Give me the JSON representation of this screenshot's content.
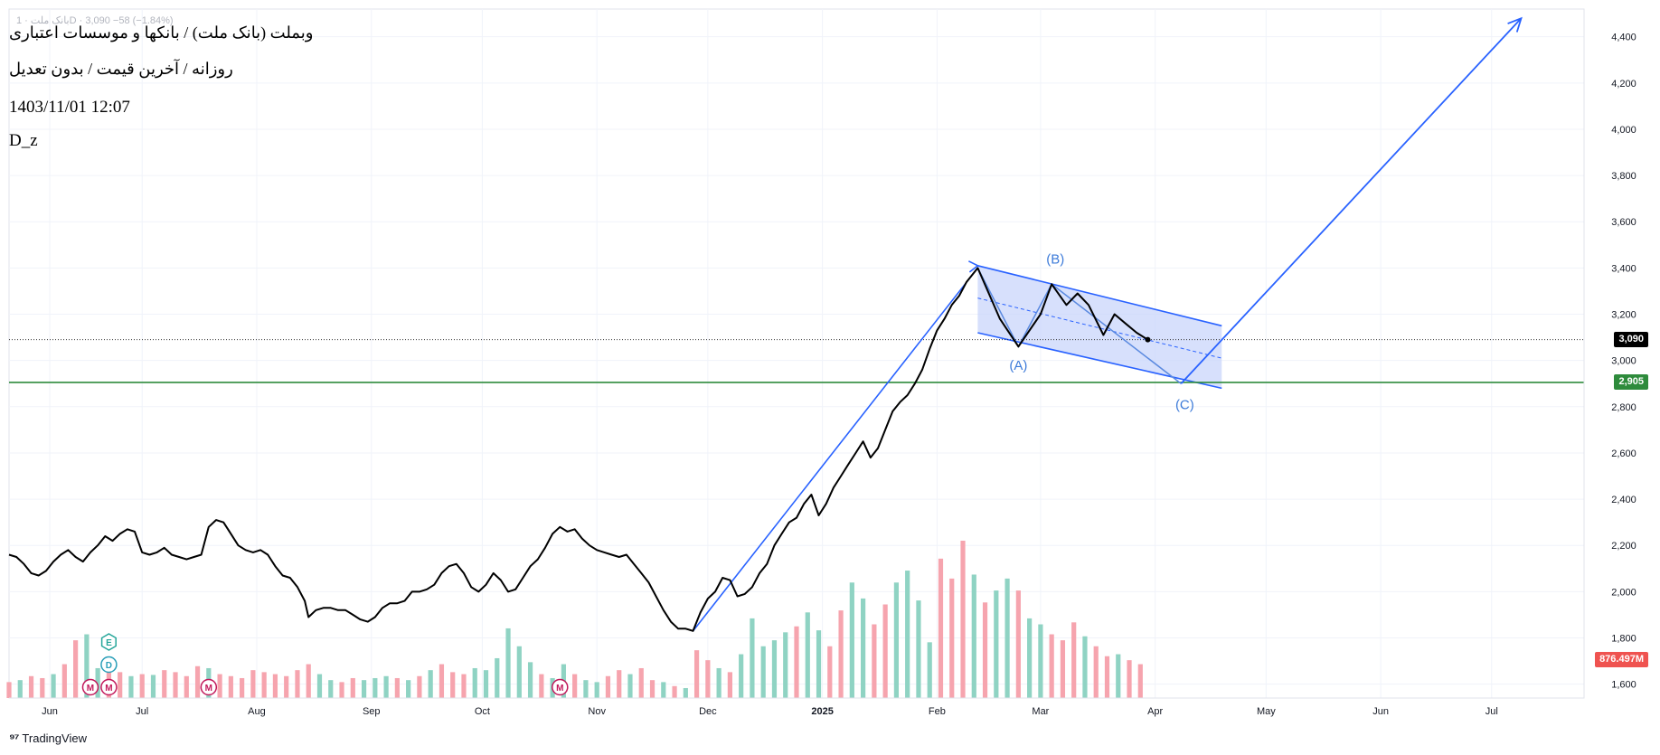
{
  "header": {
    "ticker_strip": "بانک ملت · 1D · 3,090 −58 (−1.84%)",
    "symbol_line": "وبملت (بانک ملت) / بانکها و موسسات اعتباری",
    "params_line": "روزانه / آخرین قیمت / بدون تعدیل",
    "date_line": "1403/11/01 12:07",
    "author_line": "D_z"
  },
  "footer": {
    "brand": "TradingView"
  },
  "price_labels": {
    "last": "3,090",
    "support": "2,905",
    "volume": "876.497M"
  },
  "colors": {
    "price_line": "#000000",
    "drawing_blue": "#2962ff",
    "wave_label_blue": "#3d7bd9",
    "channel_fill": "#c9d6fb",
    "support_green": "#2e8b3c",
    "volume_up": "#8fd3c3",
    "volume_down": "#f6a4ae",
    "grid": "#f0f3fa",
    "axis_text": "#131722",
    "marker_magenta": "#c2185b",
    "marker_teal": "#26a69a"
  },
  "chart_data": {
    "type": "line",
    "y_axis": {
      "ticks": [
        "1,600",
        "1,800",
        "2,000",
        "2,200",
        "2,400",
        "2,600",
        "2,800",
        "3,000",
        "3,200",
        "3,400",
        "3,600",
        "3,800",
        "4,000",
        "4,200",
        "4,400"
      ],
      "range": [
        1540,
        4520
      ]
    },
    "x_axis": {
      "range": [
        "2024-05-26",
        "2025-07-26"
      ],
      "ticks": [
        {
          "date": "2024-06-06",
          "label": "Jun"
        },
        {
          "date": "2024-07-01",
          "label": "Jul"
        },
        {
          "date": "2024-08-01",
          "label": "Aug"
        },
        {
          "date": "2024-09-01",
          "label": "Sep"
        },
        {
          "date": "2024-10-01",
          "label": "Oct"
        },
        {
          "date": "2024-11-01",
          "label": "Nov"
        },
        {
          "date": "2024-12-01",
          "label": "Dec"
        },
        {
          "date": "2025-01-01",
          "label": "2025",
          "bold": true
        },
        {
          "date": "2025-02-01",
          "label": "Feb"
        },
        {
          "date": "2025-03-01",
          "label": "Mar"
        },
        {
          "date": "2025-04-01",
          "label": "Apr"
        },
        {
          "date": "2025-05-01",
          "label": "May"
        },
        {
          "date": "2025-06-01",
          "label": "Jun"
        },
        {
          "date": "2025-07-01",
          "label": "Jul"
        }
      ]
    },
    "price_series": [
      [
        "2024-05-26",
        2160
      ],
      [
        "2024-05-28",
        2150
      ],
      [
        "2024-05-30",
        2120
      ],
      [
        "2024-06-01",
        2080
      ],
      [
        "2024-06-03",
        2070
      ],
      [
        "2024-06-05",
        2090
      ],
      [
        "2024-06-07",
        2130
      ],
      [
        "2024-06-09",
        2160
      ],
      [
        "2024-06-11",
        2180
      ],
      [
        "2024-06-13",
        2150
      ],
      [
        "2024-06-15",
        2130
      ],
      [
        "2024-06-17",
        2170
      ],
      [
        "2024-06-19",
        2200
      ],
      [
        "2024-06-21",
        2240
      ],
      [
        "2024-06-23",
        2220
      ],
      [
        "2024-06-25",
        2250
      ],
      [
        "2024-06-27",
        2270
      ],
      [
        "2024-06-29",
        2260
      ],
      [
        "2024-07-01",
        2170
      ],
      [
        "2024-07-03",
        2160
      ],
      [
        "2024-07-05",
        2170
      ],
      [
        "2024-07-07",
        2190
      ],
      [
        "2024-07-09",
        2160
      ],
      [
        "2024-07-11",
        2150
      ],
      [
        "2024-07-13",
        2140
      ],
      [
        "2024-07-15",
        2150
      ],
      [
        "2024-07-17",
        2160
      ],
      [
        "2024-07-19",
        2280
      ],
      [
        "2024-07-21",
        2310
      ],
      [
        "2024-07-23",
        2300
      ],
      [
        "2024-07-25",
        2250
      ],
      [
        "2024-07-27",
        2200
      ],
      [
        "2024-07-29",
        2180
      ],
      [
        "2024-07-31",
        2170
      ],
      [
        "2024-08-02",
        2180
      ],
      [
        "2024-08-04",
        2160
      ],
      [
        "2024-08-06",
        2110
      ],
      [
        "2024-08-08",
        2070
      ],
      [
        "2024-08-10",
        2060
      ],
      [
        "2024-08-12",
        2020
      ],
      [
        "2024-08-14",
        1960
      ],
      [
        "2024-08-15",
        1890
      ],
      [
        "2024-08-17",
        1920
      ],
      [
        "2024-08-19",
        1930
      ],
      [
        "2024-08-21",
        1930
      ],
      [
        "2024-08-23",
        1920
      ],
      [
        "2024-08-25",
        1920
      ],
      [
        "2024-08-27",
        1900
      ],
      [
        "2024-08-29",
        1880
      ],
      [
        "2024-08-31",
        1870
      ],
      [
        "2024-09-02",
        1890
      ],
      [
        "2024-09-04",
        1930
      ],
      [
        "2024-09-06",
        1950
      ],
      [
        "2024-09-08",
        1950
      ],
      [
        "2024-09-10",
        1960
      ],
      [
        "2024-09-12",
        2000
      ],
      [
        "2024-09-14",
        2000
      ],
      [
        "2024-09-16",
        2010
      ],
      [
        "2024-09-18",
        2030
      ],
      [
        "2024-09-20",
        2080
      ],
      [
        "2024-09-22",
        2110
      ],
      [
        "2024-09-24",
        2120
      ],
      [
        "2024-09-26",
        2080
      ],
      [
        "2024-09-28",
        2020
      ],
      [
        "2024-09-30",
        2000
      ],
      [
        "2024-10-02",
        2030
      ],
      [
        "2024-10-04",
        2080
      ],
      [
        "2024-10-06",
        2050
      ],
      [
        "2024-10-08",
        2000
      ],
      [
        "2024-10-10",
        2010
      ],
      [
        "2024-10-12",
        2060
      ],
      [
        "2024-10-14",
        2110
      ],
      [
        "2024-10-16",
        2140
      ],
      [
        "2024-10-18",
        2190
      ],
      [
        "2024-10-20",
        2250
      ],
      [
        "2024-10-22",
        2280
      ],
      [
        "2024-10-24",
        2260
      ],
      [
        "2024-10-26",
        2270
      ],
      [
        "2024-10-28",
        2230
      ],
      [
        "2024-10-30",
        2200
      ],
      [
        "2024-11-01",
        2180
      ],
      [
        "2024-11-03",
        2170
      ],
      [
        "2024-11-05",
        2160
      ],
      [
        "2024-11-07",
        2150
      ],
      [
        "2024-11-09",
        2160
      ],
      [
        "2024-11-11",
        2120
      ],
      [
        "2024-11-13",
        2080
      ],
      [
        "2024-11-15",
        2040
      ],
      [
        "2024-11-17",
        1980
      ],
      [
        "2024-11-19",
        1920
      ],
      [
        "2024-11-21",
        1870
      ],
      [
        "2024-11-23",
        1840
      ],
      [
        "2024-11-25",
        1840
      ],
      [
        "2024-11-27",
        1830
      ],
      [
        "2024-11-29",
        1910
      ],
      [
        "2024-12-01",
        1970
      ],
      [
        "2024-12-03",
        2000
      ],
      [
        "2024-12-05",
        2060
      ],
      [
        "2024-12-07",
        2050
      ],
      [
        "2024-12-09",
        1980
      ],
      [
        "2024-12-11",
        1990
      ],
      [
        "2024-12-13",
        2020
      ],
      [
        "2024-12-15",
        2080
      ],
      [
        "2024-12-17",
        2120
      ],
      [
        "2024-12-19",
        2200
      ],
      [
        "2024-12-21",
        2250
      ],
      [
        "2024-12-23",
        2300
      ],
      [
        "2024-12-25",
        2320
      ],
      [
        "2024-12-27",
        2380
      ],
      [
        "2024-12-29",
        2420
      ],
      [
        "2024-12-31",
        2330
      ],
      [
        "2025-01-02",
        2380
      ],
      [
        "2025-01-04",
        2450
      ],
      [
        "2025-01-06",
        2500
      ],
      [
        "2025-01-08",
        2550
      ],
      [
        "2025-01-10",
        2600
      ],
      [
        "2025-01-12",
        2650
      ],
      [
        "2025-01-14",
        2580
      ],
      [
        "2025-01-16",
        2620
      ],
      [
        "2025-01-18",
        2700
      ],
      [
        "2025-01-20",
        2780
      ],
      [
        "2025-01-22",
        2820
      ],
      [
        "2025-01-24",
        2850
      ],
      [
        "2025-01-26",
        2900
      ],
      [
        "2025-01-28",
        2960
      ],
      [
        "2025-01-30",
        3050
      ],
      [
        "2025-02-01",
        3130
      ],
      [
        "2025-02-03",
        3180
      ],
      [
        "2025-02-05",
        3240
      ],
      [
        "2025-02-07",
        3280
      ],
      [
        "2025-02-09",
        3340
      ],
      [
        "2025-02-11",
        3380
      ],
      [
        "2025-02-12",
        3400
      ],
      [
        "2025-02-18",
        3180
      ],
      [
        "2025-02-23",
        3060
      ],
      [
        "2025-03-01",
        3200
      ],
      [
        "2025-03-04",
        3330
      ],
      [
        "2025-03-08",
        3240
      ],
      [
        "2025-03-11",
        3290
      ],
      [
        "2025-03-14",
        3240
      ],
      [
        "2025-03-18",
        3110
      ],
      [
        "2025-03-21",
        3200
      ],
      [
        "2025-03-24",
        3160
      ],
      [
        "2025-03-27",
        3120
      ],
      [
        "2025-03-30",
        3090
      ]
    ],
    "volume_series": [
      [
        "2024-05-26",
        40,
        "down"
      ],
      [
        "2024-05-29",
        45,
        "up"
      ],
      [
        "2024-06-01",
        55,
        "down"
      ],
      [
        "2024-06-04",
        50,
        "down"
      ],
      [
        "2024-06-07",
        60,
        "up"
      ],
      [
        "2024-06-10",
        85,
        "down"
      ],
      [
        "2024-06-13",
        145,
        "down"
      ],
      [
        "2024-06-16",
        160,
        "up"
      ],
      [
        "2024-06-19",
        75,
        "up"
      ],
      [
        "2024-06-22",
        70,
        "down"
      ],
      [
        "2024-06-25",
        65,
        "down"
      ],
      [
        "2024-06-28",
        55,
        "up"
      ],
      [
        "2024-07-01",
        60,
        "down"
      ],
      [
        "2024-07-04",
        58,
        "up"
      ],
      [
        "2024-07-07",
        70,
        "down"
      ],
      [
        "2024-07-10",
        65,
        "down"
      ],
      [
        "2024-07-13",
        55,
        "down"
      ],
      [
        "2024-07-16",
        80,
        "down"
      ],
      [
        "2024-07-19",
        75,
        "up"
      ],
      [
        "2024-07-22",
        60,
        "down"
      ],
      [
        "2024-07-25",
        55,
        "down"
      ],
      [
        "2024-07-28",
        50,
        "down"
      ],
      [
        "2024-07-31",
        70,
        "down"
      ],
      [
        "2024-08-03",
        65,
        "down"
      ],
      [
        "2024-08-06",
        60,
        "down"
      ],
      [
        "2024-08-09",
        55,
        "down"
      ],
      [
        "2024-08-12",
        70,
        "down"
      ],
      [
        "2024-08-15",
        85,
        "down"
      ],
      [
        "2024-08-18",
        60,
        "up"
      ],
      [
        "2024-08-21",
        45,
        "up"
      ],
      [
        "2024-08-24",
        40,
        "down"
      ],
      [
        "2024-08-27",
        50,
        "down"
      ],
      [
        "2024-08-30",
        45,
        "up"
      ],
      [
        "2024-09-02",
        50,
        "up"
      ],
      [
        "2024-09-05",
        55,
        "up"
      ],
      [
        "2024-09-08",
        50,
        "down"
      ],
      [
        "2024-09-11",
        45,
        "up"
      ],
      [
        "2024-09-14",
        55,
        "down"
      ],
      [
        "2024-09-17",
        70,
        "up"
      ],
      [
        "2024-09-20",
        85,
        "down"
      ],
      [
        "2024-09-23",
        65,
        "down"
      ],
      [
        "2024-09-26",
        60,
        "down"
      ],
      [
        "2024-09-29",
        75,
        "up"
      ],
      [
        "2024-10-02",
        70,
        "up"
      ],
      [
        "2024-10-05",
        100,
        "up"
      ],
      [
        "2024-10-08",
        175,
        "up"
      ],
      [
        "2024-10-11",
        130,
        "up"
      ],
      [
        "2024-10-14",
        90,
        "up"
      ],
      [
        "2024-10-17",
        60,
        "down"
      ],
      [
        "2024-10-20",
        50,
        "up"
      ],
      [
        "2024-10-23",
        85,
        "up"
      ],
      [
        "2024-10-26",
        60,
        "down"
      ],
      [
        "2024-10-29",
        45,
        "up"
      ],
      [
        "2024-11-01",
        40,
        "up"
      ],
      [
        "2024-11-04",
        55,
        "down"
      ],
      [
        "2024-11-07",
        70,
        "down"
      ],
      [
        "2024-11-10",
        60,
        "up"
      ],
      [
        "2024-11-13",
        75,
        "down"
      ],
      [
        "2024-11-16",
        45,
        "down"
      ],
      [
        "2024-11-19",
        40,
        "up"
      ],
      [
        "2024-11-22",
        30,
        "down"
      ],
      [
        "2024-11-25",
        25,
        "up"
      ],
      [
        "2024-11-28",
        120,
        "down"
      ],
      [
        "2024-12-01",
        95,
        "down"
      ],
      [
        "2024-12-04",
        75,
        "up"
      ],
      [
        "2024-12-07",
        65,
        "down"
      ],
      [
        "2024-12-10",
        110,
        "up"
      ],
      [
        "2024-12-13",
        200,
        "up"
      ],
      [
        "2024-12-16",
        130,
        "up"
      ],
      [
        "2024-12-19",
        145,
        "up"
      ],
      [
        "2024-12-22",
        165,
        "up"
      ],
      [
        "2024-12-25",
        180,
        "down"
      ],
      [
        "2024-12-28",
        215,
        "up"
      ],
      [
        "2024-12-31",
        170,
        "up"
      ],
      [
        "2025-01-03",
        130,
        "down"
      ],
      [
        "2025-01-06",
        220,
        "down"
      ],
      [
        "2025-01-09",
        290,
        "up"
      ],
      [
        "2025-01-12",
        250,
        "up"
      ],
      [
        "2025-01-15",
        185,
        "down"
      ],
      [
        "2025-01-18",
        235,
        "down"
      ],
      [
        "2025-01-21",
        290,
        "up"
      ],
      [
        "2025-01-24",
        320,
        "up"
      ],
      [
        "2025-01-27",
        245,
        "up"
      ],
      [
        "2025-01-30",
        140,
        "up"
      ],
      [
        "2025-02-02",
        350,
        "down"
      ],
      [
        "2025-02-05",
        300,
        "down"
      ],
      [
        "2025-02-08",
        395,
        "down"
      ],
      [
        "2025-02-11",
        310,
        "up"
      ],
      [
        "2025-02-14",
        240,
        "down"
      ],
      [
        "2025-02-17",
        270,
        "up"
      ],
      [
        "2025-02-20",
        300,
        "up"
      ],
      [
        "2025-02-23",
        270,
        "down"
      ],
      [
        "2025-02-26",
        200,
        "up"
      ],
      [
        "2025-03-01",
        185,
        "up"
      ],
      [
        "2025-03-04",
        160,
        "down"
      ],
      [
        "2025-03-07",
        145,
        "down"
      ],
      [
        "2025-03-10",
        190,
        "down"
      ],
      [
        "2025-03-13",
        155,
        "up"
      ],
      [
        "2025-03-16",
        130,
        "down"
      ],
      [
        "2025-03-19",
        105,
        "down"
      ],
      [
        "2025-03-22",
        110,
        "up"
      ],
      [
        "2025-03-25",
        95,
        "down"
      ],
      [
        "2025-03-28",
        85,
        "down"
      ]
    ],
    "volume_max": 420,
    "drawings": {
      "impulse_line": [
        [
          "2024-11-27",
          1830
        ],
        [
          "2025-02-12",
          3400
        ]
      ],
      "channel_upper": [
        [
          "2025-02-12",
          3410
        ],
        [
          "2025-04-19",
          3150
        ]
      ],
      "channel_lower": [
        [
          "2025-02-12",
          3120
        ],
        [
          "2025-04-19",
          2880
        ]
      ],
      "channel_mid": [
        [
          "2025-02-12",
          3270
        ],
        [
          "2025-04-19",
          3010
        ]
      ],
      "wave_abc": [
        [
          "2025-02-12",
          3400
        ],
        [
          "2025-02-23",
          3060
        ],
        [
          "2025-03-04",
          3330
        ],
        [
          "2025-04-08",
          2900
        ]
      ],
      "target_arrow": [
        [
          "2025-04-08",
          2900
        ],
        [
          "2025-07-09",
          4480
        ]
      ],
      "support_level": 2905,
      "last_price": 3090,
      "wave_labels": [
        {
          "text": "(A)",
          "at": [
            "2025-02-23",
            2960
          ]
        },
        {
          "text": "(B)",
          "at": [
            "2025-03-05",
            3420
          ]
        },
        {
          "text": "(C)",
          "at": [
            "2025-04-09",
            2790
          ]
        }
      ]
    },
    "event_markers": [
      {
        "label": "E",
        "date": "2024-06-22",
        "shape": "hexagon",
        "row": 0
      },
      {
        "label": "D",
        "date": "2024-06-22",
        "shape": "circle",
        "row": 1
      },
      {
        "label": "M",
        "date": "2024-06-17",
        "shape": "circle",
        "row": 2
      },
      {
        "label": "M",
        "date": "2024-06-22",
        "shape": "circle",
        "row": 2
      },
      {
        "label": "M",
        "date": "2024-07-19",
        "shape": "circle",
        "row": 2
      },
      {
        "label": "M",
        "date": "2024-10-22",
        "shape": "circle",
        "row": 2
      }
    ]
  }
}
